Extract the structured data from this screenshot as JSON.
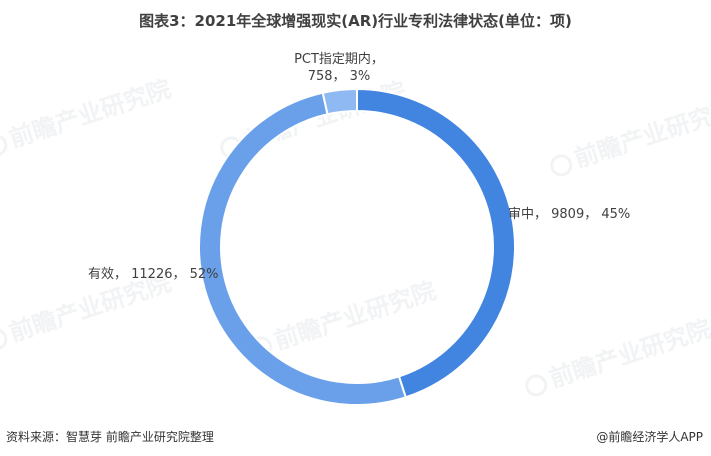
{
  "title": "图表3：2021年全球增强现实(AR)行业专利法律状态(单位：项)",
  "source": "资料来源：智慧芽 前瞻产业研究院整理",
  "brand": "@前瞻经济学人APP",
  "watermark": "前瞻产业研究院",
  "chart_data": {
    "type": "pie",
    "variant": "donut",
    "categories": [
      "审中",
      "有效",
      "PCT指定期内"
    ],
    "values": [
      9809,
      11226,
      758
    ],
    "percent_labels": [
      "45%",
      "52%",
      "3%"
    ],
    "colors": [
      "#4285e0",
      "#6aa0ea",
      "#8fb9f2"
    ],
    "labels": [
      {
        "lines": [
          "审中， 9809， 45%"
        ]
      },
      {
        "lines": [
          "有效， 11226， 52%"
        ]
      },
      {
        "lines": [
          "PCT指定期内，",
          "758， 3%"
        ]
      }
    ]
  }
}
